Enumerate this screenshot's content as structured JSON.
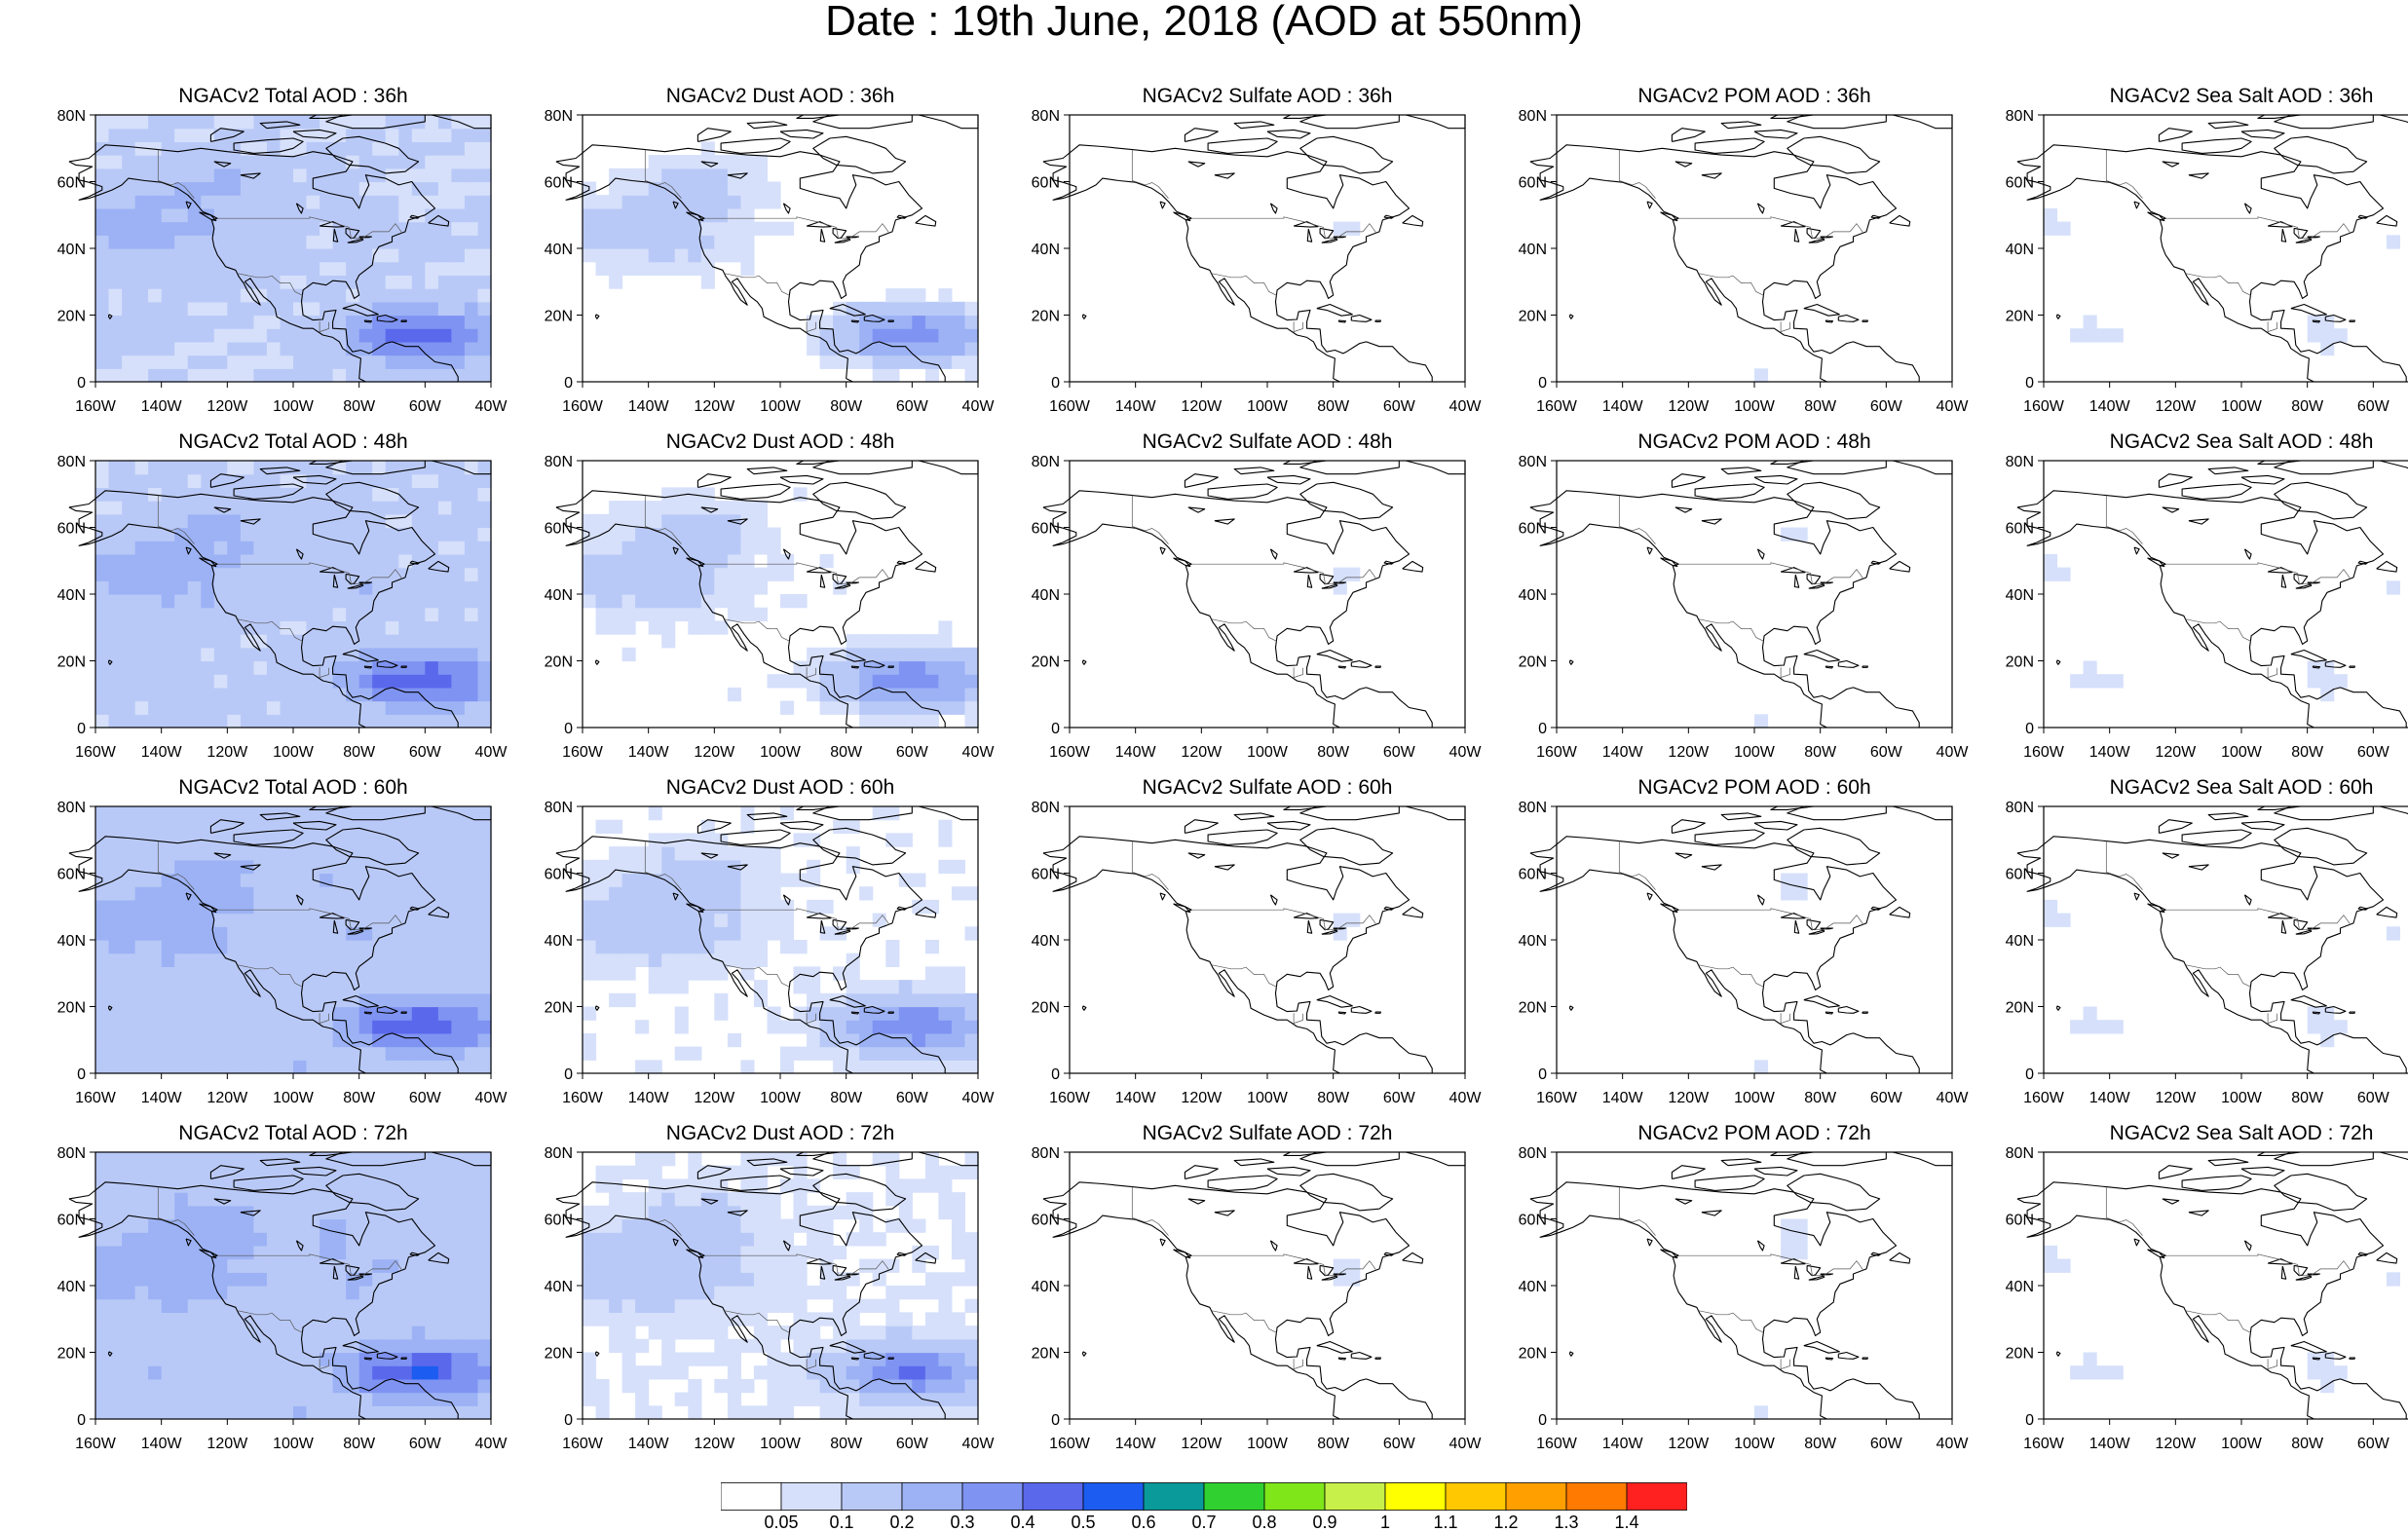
{
  "title": "Date : 19th June, 2018 (AOD at 550nm)",
  "panels": [
    {
      "title": "NGACv2 Total AOD : 36h",
      "field": "total"
    },
    {
      "title": "NGACv2 Dust AOD : 36h",
      "field": "dust"
    },
    {
      "title": "NGACv2 Sulfate AOD : 36h",
      "field": "sulfate"
    },
    {
      "title": "NGACv2 POM AOD : 36h",
      "field": "pom"
    },
    {
      "title": "NGACv2 Sea Salt AOD : 36h",
      "field": "seasalt"
    },
    {
      "title": "NGACv2 Total AOD : 48h",
      "field": "total"
    },
    {
      "title": "NGACv2 Dust AOD : 48h",
      "field": "dust"
    },
    {
      "title": "NGACv2 Sulfate AOD : 48h",
      "field": "sulfate"
    },
    {
      "title": "NGACv2 POM AOD : 48h",
      "field": "pom"
    },
    {
      "title": "NGACv2 Sea Salt AOD : 48h",
      "field": "seasalt"
    },
    {
      "title": "NGACv2 Total AOD : 60h",
      "field": "total"
    },
    {
      "title": "NGACv2 Dust AOD : 60h",
      "field": "dust"
    },
    {
      "title": "NGACv2 Sulfate AOD : 60h",
      "field": "sulfate"
    },
    {
      "title": "NGACv2 POM AOD : 60h",
      "field": "pom"
    },
    {
      "title": "NGACv2 Sea Salt AOD : 60h",
      "field": "seasalt"
    },
    {
      "title": "NGACv2 Total AOD : 72h",
      "field": "total"
    },
    {
      "title": "NGACv2 Dust AOD : 72h",
      "field": "dust"
    },
    {
      "title": "NGACv2 Sulfate AOD : 72h",
      "field": "sulfate"
    },
    {
      "title": "NGACv2 POM AOD : 72h",
      "field": "pom"
    },
    {
      "title": "NGACv2 Sea Salt  AOD : 72h",
      "field": "seasalt"
    }
  ],
  "x_tick_labels": [
    "160W",
    "140W",
    "120W",
    "100W",
    "80W",
    "60W",
    "40W"
  ],
  "y_tick_labels": [
    "0",
    "20N",
    "40N",
    "60N",
    "80N"
  ],
  "colorbar": {
    "labels": [
      "0.05",
      "0.1",
      "0.2",
      "0.3",
      "0.4",
      "0.5",
      "0.6",
      "0.7",
      "0.8",
      "0.9",
      "1",
      "1.1",
      "1.2",
      "1.3",
      "1.4"
    ],
    "colors": [
      "#ffffff",
      "#d6e0fb",
      "#b9c9f7",
      "#9cb2f5",
      "#7f93f2",
      "#5a68ec",
      "#1c5cf0",
      "#0a9a9a",
      "#2fd02f",
      "#7fe61a",
      "#c8f04a",
      "#ffff00",
      "#ffc800",
      "#ff9f00",
      "#ff7a00",
      "#ff2020"
    ]
  }
}
